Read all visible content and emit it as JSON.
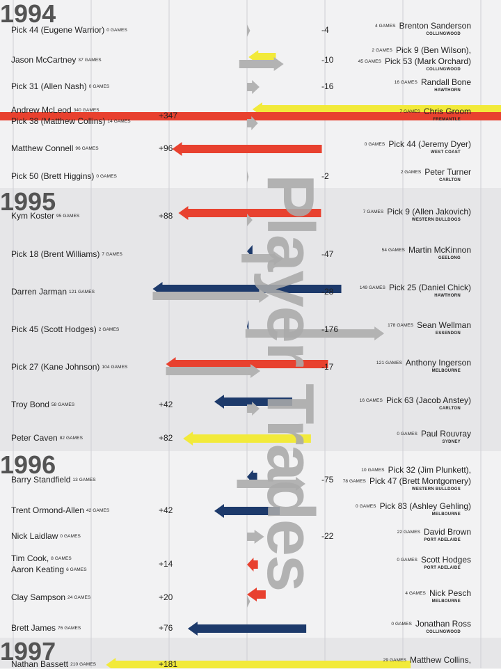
{
  "colors": {
    "gained": "#e8412f",
    "lost": "#b3b3b3",
    "gained_navy": "#1d3a6b",
    "yellow": "#f2ea3a",
    "band_light": "#f2f2f3",
    "band_dark": "#e6e6e8",
    "grid": "#cfcfd3"
  },
  "title_vertical": "Player Trades",
  "chart_data": {
    "type": "arrow-trade-chart",
    "grid_x": [
      -400,
      -300,
      -200,
      -100,
      0,
      100,
      200,
      300
    ],
    "years": [
      {
        "year": "1994",
        "trades": [
          {
            "left": [
              {
                "name": "Pick 44 (Eugene Warrior)",
                "games": "0 GAMES"
              }
            ],
            "net": "-4",
            "right": [
              {
                "name": "Brenton Sanderson",
                "games": "4 GAMES"
              }
            ],
            "club": "COLLINGWOOD",
            "bars": [
              {
                "color": "lost",
                "from": 0,
                "to": 4
              }
            ]
          },
          {
            "left": [
              {
                "name": "Jason McCartney",
                "games": "37 GAMES"
              }
            ],
            "net": "-10",
            "right": [
              {
                "name": "Pick 9 (Ben Wilson),",
                "games": "2 GAMES"
              },
              {
                "name": "Pick 53 (Mark Orchard)",
                "games": "45 GAMES"
              }
            ],
            "club": "COLLINGWOOD",
            "bars": [
              {
                "color": "yellow",
                "from": 37,
                "to": 2
              },
              {
                "color": "lost",
                "from": -10,
                "to": 47
              }
            ]
          },
          {
            "left": [
              {
                "name": "Pick 31 (Allen Nash)",
                "games": "0 GAMES"
              }
            ],
            "net": "-16",
            "right": [
              {
                "name": "Randall Bone",
                "games": "16 GAMES"
              }
            ],
            "club": "HAWTHORN",
            "bars": [
              {
                "color": "lost",
                "from": 0,
                "to": 16
              }
            ]
          },
          {
            "left": [
              {
                "name": "Andrew McLeod",
                "games": "340 GAMES"
              },
              {
                "name": "Pick 38 (Matthew Collins)",
                "games": "14 GAMES"
              }
            ],
            "net": "+347",
            "right": [
              {
                "name": "Chris Groom",
                "games": "7 GAMES"
              }
            ],
            "club": "FREMANTLE",
            "bars": [
              {
                "color": "yellow",
                "from": 354,
                "to": 7
              },
              {
                "color": "gained",
                "from": 340,
                "to": -347
              },
              {
                "color": "lost",
                "from": 0,
                "to": 14
              }
            ]
          },
          {
            "left": [
              {
                "name": "Matthew Connell",
                "games": "96 GAMES"
              }
            ],
            "net": "+96",
            "right": [
              {
                "name": "Pick 44 (Jeremy Dyer)",
                "games": "0 GAMES"
              }
            ],
            "club": "WEST COAST",
            "bars": [
              {
                "color": "gained",
                "from": 96,
                "to": -96
              }
            ]
          },
          {
            "left": [
              {
                "name": "Pick 50 (Brett Higgins)",
                "games": "0 GAMES"
              }
            ],
            "net": "-2",
            "right": [
              {
                "name": "Peter Turner",
                "games": "2 GAMES"
              }
            ],
            "club": "CARLTON",
            "bars": [
              {
                "color": "lost",
                "from": 0,
                "to": 2
              }
            ]
          }
        ]
      },
      {
        "year": "1995",
        "trades": [
          {
            "left": [
              {
                "name": "Kym Koster",
                "games": "95 GAMES"
              }
            ],
            "net": "+88",
            "right": [
              {
                "name": "Pick 9  (Allen Jakovich)",
                "games": "7 GAMES"
              }
            ],
            "club": "WESTERN BULLDOGS",
            "bars": [
              {
                "color": "gained",
                "from": 95,
                "to": -88
              },
              {
                "color": "lost",
                "from": 0,
                "to": 7
              }
            ]
          },
          {
            "left": [
              {
                "name": "Pick 18 (Brent Williams)",
                "games": "7 GAMES"
              }
            ],
            "net": "-47",
            "right": [
              {
                "name": "Martin McKinnon",
                "games": "54 GAMES"
              }
            ],
            "club": "GEELONG",
            "bars": [
              {
                "color": "navy",
                "from": 7,
                "to": 0
              },
              {
                "color": "lost",
                "from": -7,
                "to": 47
              }
            ]
          },
          {
            "left": [
              {
                "name": "Darren Jarman",
                "games": "121 GAMES"
              }
            ],
            "net": "-28",
            "right": [
              {
                "name": "Pick 25 (Daniel Chick)",
                "games": "149 GAMES"
              }
            ],
            "club": "HAWTHORN",
            "bars": [
              {
                "color": "navy",
                "from": 121,
                "to": -121
              },
              {
                "color": "lost",
                "from": -121,
                "to": 28
              }
            ]
          },
          {
            "left": [
              {
                "name": "Pick 45 (Scott Hodges)",
                "games": "2 GAMES"
              }
            ],
            "net": "-176",
            "right": [
              {
                "name": "Sean Wellman",
                "games": "178 GAMES"
              }
            ],
            "club": "ESSENDON",
            "bars": [
              {
                "color": "navy",
                "from": 2,
                "to": 0
              },
              {
                "color": "lost",
                "from": -2,
                "to": 176
              }
            ]
          },
          {
            "left": [
              {
                "name": "Pick 27 (Kane Johnson)",
                "games": "104 GAMES"
              }
            ],
            "net": "-17",
            "right": [
              {
                "name": "Anthony Ingerson",
                "games": "121 GAMES"
              }
            ],
            "club": "MELBOURNE",
            "bars": [
              {
                "color": "gained",
                "from": 104,
                "to": -104
              },
              {
                "color": "lost",
                "from": -104,
                "to": 17
              }
            ]
          },
          {
            "left": [
              {
                "name": "Troy Bond",
                "games": "58 GAMES"
              }
            ],
            "net": "+42",
            "right": [
              {
                "name": "Pick 63 (Jacob Anstey)",
                "games": "16 GAMES"
              }
            ],
            "club": "CARLTON",
            "bars": [
              {
                "color": "navy",
                "from": 58,
                "to": -42
              },
              {
                "color": "lost",
                "from": 0,
                "to": 16
              }
            ]
          },
          {
            "left": [
              {
                "name": "Peter Caven",
                "games": "82 GAMES"
              }
            ],
            "net": "+82",
            "right": [
              {
                "name": "Paul Rouvray",
                "games": "0 GAMES"
              }
            ],
            "club": "SYDNEY",
            "bars": [
              {
                "color": "yellow",
                "from": 82,
                "to": -82
              }
            ]
          }
        ]
      },
      {
        "year": "1996",
        "trades": [
          {
            "left": [
              {
                "name": "Barry Standfield",
                "games": "13 GAMES"
              }
            ],
            "net": "-75",
            "right": [
              {
                "name": "Pick 32 (Jim Plunkett),",
                "games": "10 GAMES"
              },
              {
                "name": "Pick 47 (Brett Montgomery)",
                "games": "78 GAMES"
              }
            ],
            "club": "WESTERN BULLDOGS",
            "bars": [
              {
                "color": "navy",
                "from": 13,
                "to": 0
              },
              {
                "color": "lost",
                "from": -13,
                "to": 75
              }
            ]
          },
          {
            "left": [
              {
                "name": "Trent Ormond-Allen",
                "games": "42 GAMES"
              }
            ],
            "net": "+42",
            "right": [
              {
                "name": "Pick 83 (Ashley Gehling)",
                "games": "0 GAMES"
              }
            ],
            "club": "MELBOURNE",
            "bars": [
              {
                "color": "navy",
                "from": 42,
                "to": -42
              }
            ]
          },
          {
            "left": [
              {
                "name": "Nick Laidlaw",
                "games": "0 GAMES"
              }
            ],
            "net": "-22",
            "right": [
              {
                "name": "David Brown",
                "games": "22 GAMES"
              }
            ],
            "club": "PORT ADELAIDE",
            "bars": [
              {
                "color": "lost",
                "from": 0,
                "to": 22
              }
            ]
          },
          {
            "left": [
              {
                "name": "Tim Cook,",
                "games": "8 GAMES"
              },
              {
                "name": "Aaron Keating",
                "games": "6 GAMES"
              }
            ],
            "net": "+14",
            "right": [
              {
                "name": "Scott Hodges",
                "games": "0 GAMES"
              }
            ],
            "club": "PORT ADELAIDE",
            "bars": [
              {
                "color": "gained",
                "from": 14,
                "to": 0
              }
            ]
          },
          {
            "left": [
              {
                "name": "Clay Sampson",
                "games": "24 GAMES"
              }
            ],
            "net": "+20",
            "right": [
              {
                "name": "Nick Pesch",
                "games": "4 GAMES"
              }
            ],
            "club": "MELBOURNE",
            "bars": [
              {
                "color": "gained",
                "from": 24,
                "to": 0
              },
              {
                "color": "lost",
                "from": 0,
                "to": 4
              }
            ]
          },
          {
            "left": [
              {
                "name": "Brett James",
                "games": "76 GAMES"
              }
            ],
            "net": "+76",
            "right": [
              {
                "name": "Jonathan Ross",
                "games": "0 GAMES"
              }
            ],
            "club": "COLLINGWOOD",
            "bars": [
              {
                "color": "navy",
                "from": 76,
                "to": -76
              }
            ]
          }
        ]
      },
      {
        "year": "1997",
        "trades": [
          {
            "left": [
              {
                "name": "Nathan Bassett",
                "games": "210 GAMES"
              }
            ],
            "net": "+181",
            "right": [
              {
                "name": "Matthew Collins,",
                "games": "29 GAMES"
              }
            ],
            "club": "",
            "bars": [
              {
                "color": "yellow",
                "from": 210,
                "to": -181
              }
            ]
          }
        ]
      }
    ]
  }
}
